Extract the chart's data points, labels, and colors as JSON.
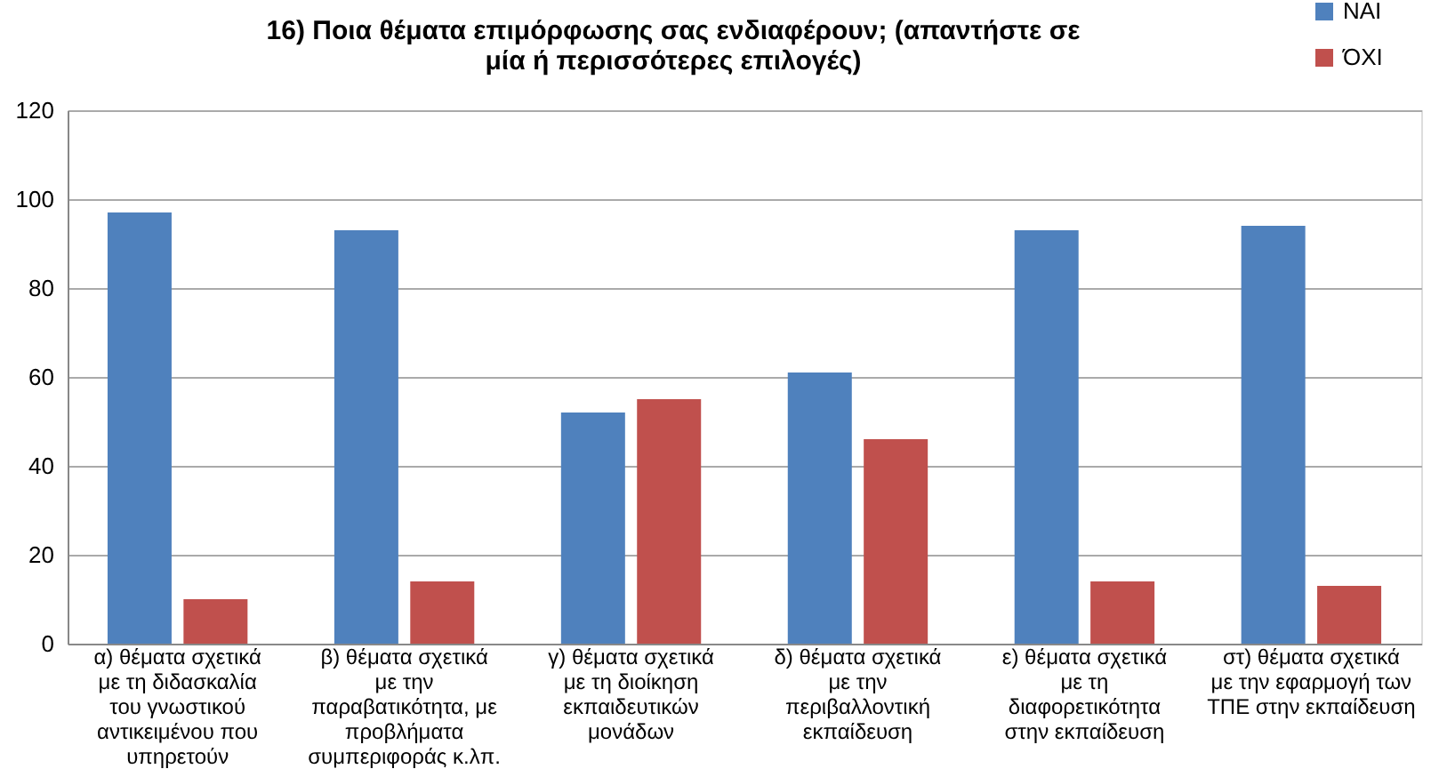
{
  "chart_data": {
    "type": "bar",
    "title": "16) Ποια θέματα επιμόρφωσης σας ενδιαφέρουν; (απαντήστε σε μία ή περισσότερες επιλογές)",
    "categories": [
      "α) θέματα σχετικά με τη διδασκαλία του γνωστικού αντικειμένου που υπηρετούν",
      "β) θέματα σχετικά με την παραβατικότητα, με προβλήματα συμπεριφοράς κ.λπ.",
      "γ) θέματα σχετικά με τη διοίκηση εκπαιδευτικών μονάδων",
      "δ) θέματα σχετικά με την περιβαλλοντική εκπαίδευση",
      "ε) θέματα σχετικά με τη διαφορετικότητα στην εκπαίδευση",
      "στ) θέματα σχετικά με την εφαρμογή των ΤΠΕ στην εκπαίδευση"
    ],
    "series": [
      {
        "name": "ΝΑΙ",
        "color": "#4f81bd",
        "values": [
          97,
          93,
          52,
          61,
          93,
          94
        ]
      },
      {
        "name": "ΌΧΙ",
        "color": "#c0504d",
        "values": [
          10,
          14,
          55,
          46,
          14,
          13
        ]
      }
    ],
    "ylim": [
      0,
      120
    ],
    "yticks": [
      0,
      20,
      40,
      60,
      80,
      100,
      120
    ],
    "grid": "y",
    "legend": "top right"
  }
}
